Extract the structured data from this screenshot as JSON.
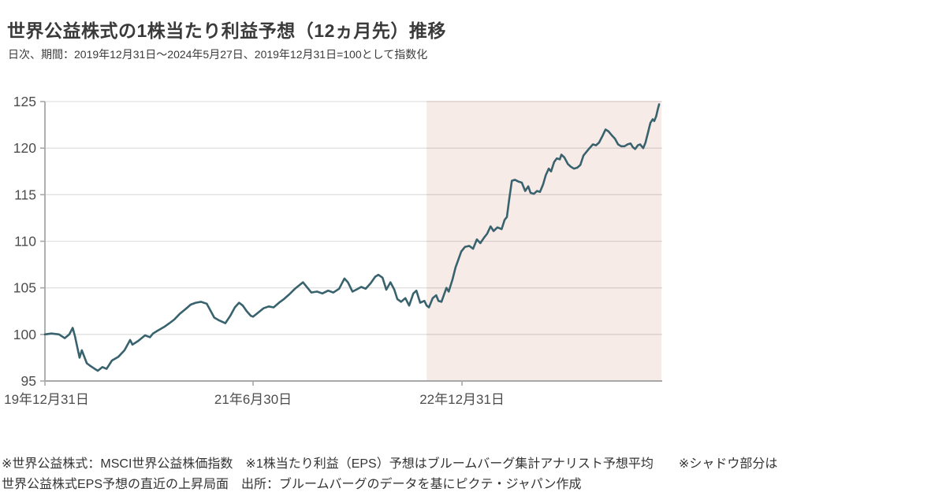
{
  "page": {
    "title": "世界公益株式の1株当たり利益予想（12ヵ月先）推移",
    "subtitle": "日次、期間：2019年12月31日～2024年5月27日、2019年12月31日=100として指数化",
    "footnotes": {
      "line1": "※世界公益株式：MSCI世界公益株価指数　※1株当たり利益（EPS）予想はブルームバーグ集計アナリスト予想平均　　※シャドウ部分は",
      "line2": "世界公益株式EPS予想の直近の上昇局面　出所：ブルームバーグのデータを基にピクテ・ジャパン作成"
    }
  },
  "chart_data": {
    "type": "line",
    "title": "世界公益株式の1株当たり利益予想（12ヵ月先）推移",
    "subtitle": "日次、期間：2019年12月31日～2024年5月27日、2019年12月31日=100として指数化",
    "x_unit": "days since 2019-12-31",
    "start_date": "2019年12月31日",
    "end_date": "2024年5月27日",
    "index_base": "2019年12月31日=100",
    "xlim_days": [
      0,
      1622
    ],
    "ylim": [
      95,
      125
    ],
    "y_ticks": [
      95,
      100,
      105,
      110,
      115,
      120,
      125
    ],
    "x_ticks": [
      {
        "day": 0,
        "label": "19年12月31日"
      },
      {
        "day": 547,
        "label": "21年6月30日"
      },
      {
        "day": 1096,
        "label": "22年12月31日"
      }
    ],
    "grid": true,
    "legend_position": "none",
    "shading": {
      "meaning": "シャドウ部分は世界公益株式EPS予想の直近の上昇局面",
      "start_day": 1003,
      "end_day": 1620
    },
    "series": [
      {
        "name": "世界公益株式の1株当たり利益予想（12ヵ月先）指数",
        "points": [
          [
            0,
            100.0
          ],
          [
            17,
            100.1
          ],
          [
            37,
            100.0
          ],
          [
            52,
            99.6
          ],
          [
            64,
            100.0
          ],
          [
            73,
            100.7
          ],
          [
            79,
            99.8
          ],
          [
            91,
            97.5
          ],
          [
            97,
            98.3
          ],
          [
            110,
            96.9
          ],
          [
            120,
            96.6
          ],
          [
            131,
            96.3
          ],
          [
            139,
            96.1
          ],
          [
            151,
            96.5
          ],
          [
            162,
            96.3
          ],
          [
            176,
            97.2
          ],
          [
            193,
            97.6
          ],
          [
            209,
            98.3
          ],
          [
            224,
            99.4
          ],
          [
            230,
            98.9
          ],
          [
            245,
            99.3
          ],
          [
            263,
            99.9
          ],
          [
            276,
            99.7
          ],
          [
            284,
            100.1
          ],
          [
            296,
            100.4
          ],
          [
            313,
            100.8
          ],
          [
            327,
            101.2
          ],
          [
            340,
            101.6
          ],
          [
            354,
            102.2
          ],
          [
            369,
            102.7
          ],
          [
            383,
            103.2
          ],
          [
            396,
            103.4
          ],
          [
            410,
            103.5
          ],
          [
            425,
            103.3
          ],
          [
            437,
            102.4
          ],
          [
            445,
            101.8
          ],
          [
            458,
            101.5
          ],
          [
            474,
            101.2
          ],
          [
            487,
            102.0
          ],
          [
            499,
            102.9
          ],
          [
            510,
            103.4
          ],
          [
            520,
            103.1
          ],
          [
            530,
            102.5
          ],
          [
            541,
            102.0
          ],
          [
            547,
            101.9
          ],
          [
            559,
            102.3
          ],
          [
            574,
            102.8
          ],
          [
            588,
            103.0
          ],
          [
            601,
            102.9
          ],
          [
            615,
            103.4
          ],
          [
            628,
            103.8
          ],
          [
            642,
            104.3
          ],
          [
            657,
            104.9
          ],
          [
            669,
            105.3
          ],
          [
            678,
            105.6
          ],
          [
            690,
            105.0
          ],
          [
            700,
            104.5
          ],
          [
            715,
            104.6
          ],
          [
            729,
            104.4
          ],
          [
            744,
            104.7
          ],
          [
            758,
            104.5
          ],
          [
            773,
            104.9
          ],
          [
            787,
            106.0
          ],
          [
            796,
            105.6
          ],
          [
            808,
            104.6
          ],
          [
            818,
            104.8
          ],
          [
            831,
            105.1
          ],
          [
            843,
            104.9
          ],
          [
            856,
            105.5
          ],
          [
            868,
            106.2
          ],
          [
            876,
            106.4
          ],
          [
            887,
            106.1
          ],
          [
            897,
            104.8
          ],
          [
            908,
            105.6
          ],
          [
            918,
            104.8
          ],
          [
            926,
            103.8
          ],
          [
            936,
            103.5
          ],
          [
            947,
            103.9
          ],
          [
            957,
            103.1
          ],
          [
            968,
            104.4
          ],
          [
            976,
            104.7
          ],
          [
            986,
            103.4
          ],
          [
            997,
            103.6
          ],
          [
            1003,
            103.1
          ],
          [
            1009,
            102.9
          ],
          [
            1019,
            103.9
          ],
          [
            1028,
            104.2
          ],
          [
            1034,
            103.6
          ],
          [
            1042,
            103.5
          ],
          [
            1055,
            105.0
          ],
          [
            1061,
            104.6
          ],
          [
            1071,
            105.9
          ],
          [
            1079,
            107.2
          ],
          [
            1086,
            108.0
          ],
          [
            1094,
            108.9
          ],
          [
            1104,
            109.4
          ],
          [
            1115,
            109.5
          ],
          [
            1125,
            109.2
          ],
          [
            1135,
            110.2
          ],
          [
            1144,
            109.8
          ],
          [
            1154,
            110.4
          ],
          [
            1162,
            110.8
          ],
          [
            1171,
            111.6
          ],
          [
            1179,
            111.1
          ],
          [
            1189,
            111.5
          ],
          [
            1200,
            111.3
          ],
          [
            1208,
            112.3
          ],
          [
            1214,
            112.6
          ],
          [
            1220,
            114.5
          ],
          [
            1227,
            116.5
          ],
          [
            1235,
            116.6
          ],
          [
            1245,
            116.4
          ],
          [
            1253,
            116.3
          ],
          [
            1262,
            115.4
          ],
          [
            1270,
            115.9
          ],
          [
            1276,
            115.2
          ],
          [
            1285,
            115.1
          ],
          [
            1293,
            115.4
          ],
          [
            1301,
            115.3
          ],
          [
            1309,
            116.1
          ],
          [
            1316,
            117.1
          ],
          [
            1324,
            117.8
          ],
          [
            1330,
            117.5
          ],
          [
            1338,
            118.5
          ],
          [
            1345,
            118.9
          ],
          [
            1353,
            118.8
          ],
          [
            1357,
            119.3
          ],
          [
            1365,
            119.0
          ],
          [
            1374,
            118.3
          ],
          [
            1382,
            118.0
          ],
          [
            1390,
            117.8
          ],
          [
            1399,
            117.9
          ],
          [
            1407,
            118.2
          ],
          [
            1415,
            119.2
          ],
          [
            1423,
            119.6
          ],
          [
            1431,
            120.0
          ],
          [
            1440,
            120.4
          ],
          [
            1448,
            120.3
          ],
          [
            1456,
            120.6
          ],
          [
            1465,
            121.3
          ],
          [
            1473,
            122.0
          ],
          [
            1481,
            121.8
          ],
          [
            1489,
            121.4
          ],
          [
            1498,
            121.0
          ],
          [
            1506,
            120.4
          ],
          [
            1514,
            120.2
          ],
          [
            1523,
            120.2
          ],
          [
            1531,
            120.4
          ],
          [
            1539,
            120.5
          ],
          [
            1545,
            120.1
          ],
          [
            1551,
            119.9
          ],
          [
            1558,
            120.3
          ],
          [
            1564,
            120.4
          ],
          [
            1572,
            120.0
          ],
          [
            1578,
            120.6
          ],
          [
            1585,
            121.7
          ],
          [
            1591,
            122.7
          ],
          [
            1597,
            123.1
          ],
          [
            1601,
            122.9
          ],
          [
            1606,
            123.4
          ],
          [
            1610,
            124.1
          ],
          [
            1614,
            124.7
          ]
        ]
      }
    ],
    "colors": {
      "line": "#38626d",
      "shading": "#f7ebe7",
      "axis": "#a8a8a8",
      "grid": "#e0e0e0",
      "text": "#4d4d4d"
    }
  }
}
